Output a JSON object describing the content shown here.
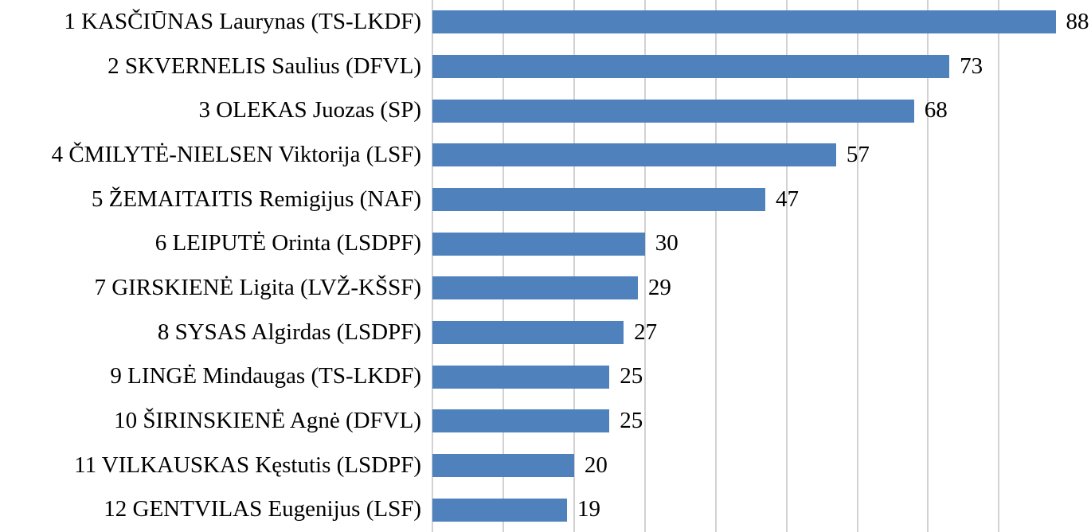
{
  "chart_data": {
    "type": "bar",
    "orientation": "horizontal",
    "title": "",
    "xlabel": "",
    "ylabel": "",
    "categories": [
      "1 KASČIŪNAS Laurynas (TS-LKDF)",
      "2 SKVERNELIS Saulius (DFVL)",
      "3 OLEKAS Juozas (SP)",
      "4 ČMILYTĖ-NIELSEN Viktorija (LSF)",
      "5 ŽEMAITAITIS Remigijus (NAF)",
      "6 LEIPUTĖ Orinta (LSDPF)",
      "7 GIRSKIENĖ Ligita (LVŽ-KŠSF)",
      "8 SYSAS Algirdas (LSDPF)",
      "9 LINGĖ Mindaugas (TS-LKDF)",
      "10 ŠIRINSKIENĖ Agnė (DFVL)",
      "11 VILKAUSKAS Kęstutis (LSDPF)",
      "12 GENTVILAS Eugenijus (LSF)"
    ],
    "values": [
      88,
      73,
      68,
      57,
      47,
      30,
      29,
      27,
      25,
      25,
      20,
      19
    ],
    "data_labels_shown": true,
    "xlim": [
      0,
      93
    ],
    "gridline_step": 10,
    "grid": "vertical-only",
    "legend": "none",
    "axis_tick_labels_visible": false,
    "bar_color": "#4f81bd",
    "gridline_color": "#d2d2d2",
    "text_color": "#000000",
    "background_color": "#ffffff"
  }
}
